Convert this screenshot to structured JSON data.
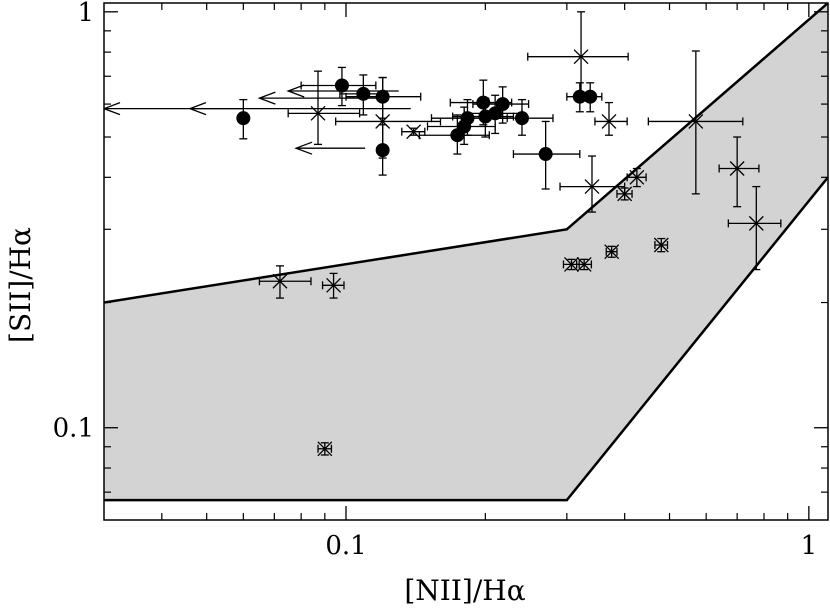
{
  "chart_data": {
    "type": "scatter",
    "xlabel": "[NII]/Hα",
    "ylabel": "[SII]/Hα",
    "x_scale": "log",
    "y_scale": "log",
    "xlim": [
      0.03,
      1.1
    ],
    "ylim": [
      0.06,
      1.05
    ],
    "x_ticks": [
      {
        "value": 0.1,
        "label": "0.1"
      },
      {
        "value": 1,
        "label": "1"
      }
    ],
    "y_ticks": [
      {
        "value": 0.1,
        "label": "0.1"
      },
      {
        "value": 1,
        "label": "1"
      }
    ],
    "region": {
      "fill": "#d3d3d3",
      "upper_boundary": [
        [
          0.03,
          0.2
        ],
        [
          0.3,
          0.3
        ],
        [
          1.1,
          1.05
        ]
      ],
      "lower_boundary": [
        [
          0.03,
          0.067
        ],
        [
          0.3,
          0.067
        ],
        [
          1.1,
          0.4
        ]
      ]
    },
    "series": [
      {
        "marker": "filled-circle",
        "points": [
          {
            "x": 0.06,
            "y": 0.555,
            "yerr": [
              0.06,
              0.06
            ]
          },
          {
            "x": 0.098,
            "y": 0.665,
            "xerr": [
              0.018,
              0.018
            ],
            "yerr": [
              0.07,
              0.07
            ]
          },
          {
            "x": 0.109,
            "y": 0.635,
            "xerr": [
              0.012,
              0.012
            ],
            "yerr": [
              0.07,
              0.07
            ]
          },
          {
            "x": 0.12,
            "y": 0.625,
            "xerr": [
              0.02,
              0.025
            ],
            "yerr": [
              0.07,
              0.07
            ]
          },
          {
            "x": 0.12,
            "y": 0.465,
            "yerr": [
              0.06,
              0.07
            ]
          },
          {
            "x": 0.174,
            "y": 0.505,
            "xerr": [
              0.03,
              0.03
            ],
            "yerr": [
              0.05,
              0.06
            ]
          },
          {
            "x": 0.18,
            "y": 0.53,
            "xerr": [
              0.03,
              0.03
            ],
            "yerr": [
              0.05,
              0.06
            ]
          },
          {
            "x": 0.183,
            "y": 0.555,
            "xerr": [
              0.03,
              0.04
            ],
            "yerr": [
              0.05,
              0.06
            ]
          },
          {
            "x": 0.198,
            "y": 0.605,
            "xerr": [
              0.03,
              0.03
            ],
            "yerr": [
              0.07,
              0.08
            ]
          },
          {
            "x": 0.2,
            "y": 0.56,
            "xerr": [
              0.03,
              0.03
            ],
            "yerr": [
              0.06,
              0.06
            ]
          },
          {
            "x": 0.21,
            "y": 0.57,
            "xerr": [
              0.03,
              0.03
            ],
            "yerr": [
              0.06,
              0.06
            ]
          },
          {
            "x": 0.218,
            "y": 0.6,
            "xerr": [
              0.03,
              0.03
            ],
            "yerr": [
              0.06,
              0.06
            ]
          },
          {
            "x": 0.24,
            "y": 0.555,
            "xerr": [
              0.04,
              0.04
            ],
            "yerr": [
              0.05,
              0.06
            ]
          },
          {
            "x": 0.27,
            "y": 0.455,
            "xerr": [
              0.04,
              0.05
            ],
            "yerr": [
              0.08,
              0.09
            ]
          },
          {
            "x": 0.32,
            "y": 0.625,
            "xerr": [
              0.02,
              0.02
            ],
            "yerr": [
              0.05,
              0.05
            ]
          },
          {
            "x": 0.337,
            "y": 0.625,
            "xerr": [
              0.02,
              0.02
            ],
            "yerr": [
              0.05,
              0.05
            ]
          }
        ]
      },
      {
        "marker": "cross",
        "points": [
          {
            "x": 0.072,
            "y": 0.225,
            "xerr": [
              0.007,
              0.012
            ],
            "yerr": [
              0.02,
              0.02
            ]
          },
          {
            "x": 0.087,
            "y": 0.57,
            "xerr": [
              0.012,
              0.02
            ],
            "yerr": [
              0.09,
              0.15
            ]
          },
          {
            "x": 0.094,
            "y": 0.22,
            "xerr": [
              0.005,
              0.005
            ],
            "yerr": [
              0.015,
              0.015
            ]
          },
          {
            "x": 0.09,
            "y": 0.089,
            "xerr": [
              0.003,
              0.003
            ],
            "yerr": [
              0.003,
              0.003
            ]
          },
          {
            "x": 0.12,
            "y": 0.545,
            "xerr": [
              0.025,
              0.04
            ],
            "yerr": [
              0.1,
              0.15
            ]
          },
          {
            "x": 0.14,
            "y": 0.515,
            "xerr": [
              0.008,
              0.008
            ],
            "yerr": [
              0.01,
              0.01
            ]
          },
          {
            "x": 0.322,
            "y": 0.78,
            "xerr": [
              0.075,
              0.085
            ],
            "yerr": [
              0.14,
              0.22
            ]
          },
          {
            "x": 0.307,
            "y": 0.247,
            "xerr": [
              0.012,
              0.012
            ],
            "yerr": [
              0.007,
              0.007
            ]
          },
          {
            "x": 0.327,
            "y": 0.247,
            "xerr": [
              0.012,
              0.012
            ],
            "yerr": [
              0.007,
              0.007
            ]
          },
          {
            "x": 0.34,
            "y": 0.38,
            "xerr": [
              0.05,
              0.06
            ],
            "yerr": [
              0.05,
              0.07
            ]
          },
          {
            "x": 0.37,
            "y": 0.545,
            "xerr": [
              0.025,
              0.035
            ],
            "yerr": [
              0.04,
              0.06
            ]
          },
          {
            "x": 0.375,
            "y": 0.265,
            "xerr": [
              0.01,
              0.01
            ],
            "yerr": [
              0.008,
              0.008
            ]
          },
          {
            "x": 0.4,
            "y": 0.365,
            "xerr": [
              0.015,
              0.015
            ],
            "yerr": [
              0.012,
              0.012
            ]
          },
          {
            "x": 0.425,
            "y": 0.4,
            "xerr": [
              0.02,
              0.02
            ],
            "yerr": [
              0.02,
              0.02
            ]
          },
          {
            "x": 0.48,
            "y": 0.275,
            "xerr": [
              0.015,
              0.015
            ],
            "yerr": [
              0.01,
              0.01
            ]
          },
          {
            "x": 0.57,
            "y": 0.545,
            "xerr": [
              0.12,
              0.15
            ],
            "yerr": [
              0.18,
              0.26
            ]
          },
          {
            "x": 0.7,
            "y": 0.42,
            "xerr": [
              0.06,
              0.08
            ],
            "yerr": [
              0.08,
              0.08
            ]
          },
          {
            "x": 0.77,
            "y": 0.31,
            "xerr": [
              0.1,
              0.1
            ],
            "yerr": [
              0.07,
              0.07
            ]
          }
        ]
      },
      {
        "marker": "upper-limit-arrow",
        "points": [
          {
            "x": 0.06,
            "y": 0.585,
            "x_extent": 0.03
          },
          {
            "x": 0.138,
            "y": 0.585,
            "x_extent": 0.046
          },
          {
            "x": 0.12,
            "y": 0.62,
            "x_extent": 0.065
          },
          {
            "x": 0.13,
            "y": 0.645,
            "x_extent": 0.075
          },
          {
            "x": 0.11,
            "y": 0.47,
            "x_extent": 0.078
          }
        ]
      }
    ]
  }
}
